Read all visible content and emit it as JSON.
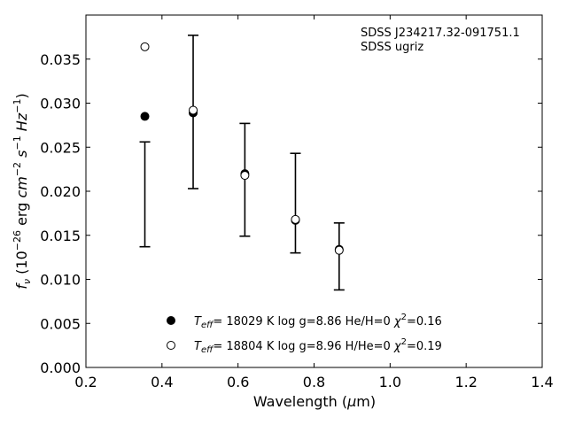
{
  "chart_data": {
    "type": "scatter",
    "annotation": [
      "SDSS J234217.32-091751.1",
      "SDSS ugriz"
    ],
    "xlabel": "Wavelength (μm)",
    "ylabel": "f_ν (10^-26 erg cm^-2 s^-1 Hz^-1)",
    "xlim": [
      0.2,
      1.4
    ],
    "ylim": [
      0.0,
      0.04
    ],
    "xticks": [
      "0.2",
      "0.4",
      "0.6",
      "0.8",
      "1.0",
      "1.2",
      "1.4"
    ],
    "yticks": [
      "0.000",
      "0.005",
      "0.010",
      "0.015",
      "0.020",
      "0.025",
      "0.030",
      "0.035"
    ],
    "observed": {
      "x": [
        0.355,
        0.482,
        0.618,
        0.751,
        0.866
      ],
      "y": [
        0.0197,
        0.029,
        0.0213,
        0.0187,
        0.0126
      ],
      "yerr_low": [
        0.0137,
        0.0203,
        0.0149,
        0.013,
        0.0088
      ],
      "yerr_high": [
        0.0256,
        0.0377,
        0.0277,
        0.0243,
        0.0164
      ]
    },
    "series": [
      {
        "legend": "T_eff= 18029 K  log g=8.86  He/H=0  χ²=0.16",
        "marker": "filled",
        "x": [
          0.355,
          0.482,
          0.618,
          0.751,
          0.866
        ],
        "y": [
          0.0285,
          0.0289,
          0.022,
          0.0167,
          0.0134
        ]
      },
      {
        "legend": "T_eff= 18804 K  log g=8.96  H/He=0  χ²=0.19",
        "marker": "open",
        "x": [
          0.355,
          0.482,
          0.618,
          0.751,
          0.866
        ],
        "y": [
          0.0364,
          0.0292,
          0.0218,
          0.0168,
          0.0133
        ]
      }
    ],
    "legend_position": "lower-center",
    "grid": false
  }
}
